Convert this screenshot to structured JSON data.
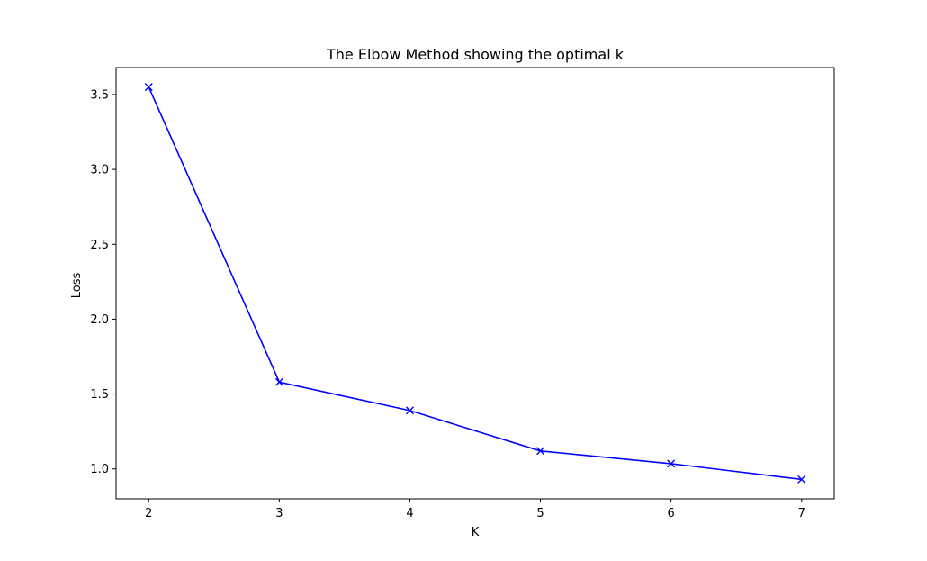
{
  "chart_data": {
    "type": "line",
    "title": "The Elbow Method showing the optimal k",
    "xlabel": "K",
    "ylabel": "Loss",
    "x": [
      2,
      3,
      4,
      5,
      6,
      7
    ],
    "series": [
      {
        "values": [
          3.55,
          1.58,
          1.39,
          1.12,
          1.035,
          0.93
        ]
      }
    ],
    "marker": "x",
    "color": "#0000ff",
    "xticks": [
      "2",
      "3",
      "4",
      "5",
      "6",
      "7"
    ],
    "yticks": [
      "1.0",
      "1.5",
      "2.0",
      "2.5",
      "3.0",
      "3.5"
    ],
    "xlim": [
      1.75,
      7.25
    ],
    "ylim": [
      0.8,
      3.68
    ],
    "grid": false
  }
}
